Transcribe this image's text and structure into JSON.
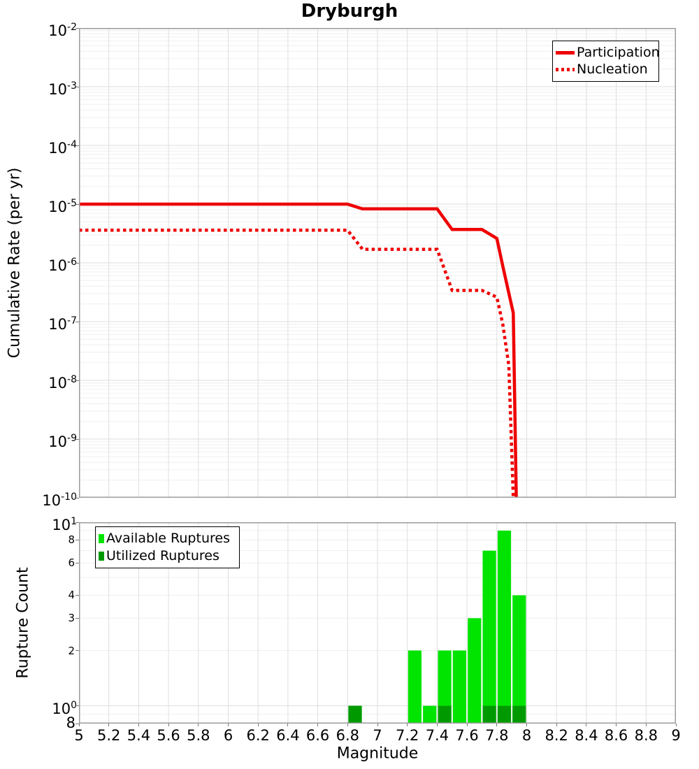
{
  "title": "Dryburgh",
  "colors": {
    "series_red": "#ee0000",
    "available_green": "#00e400",
    "utilized_green": "#009a00",
    "grid_major": "#dedede",
    "grid_minor": "#efefef",
    "panel_border": "#9c9c9c",
    "legend_border": "#000000",
    "background": "#ffffff",
    "text": "#000000"
  },
  "x_axis": {
    "label": "Magnitude",
    "min": 5,
    "max": 9,
    "ticks": [
      {
        "v": 5,
        "label": "5"
      },
      {
        "v": 5.2,
        "label": "5.2"
      },
      {
        "v": 5.4,
        "label": "5.4"
      },
      {
        "v": 5.6,
        "label": "5.6"
      },
      {
        "v": 5.8,
        "label": "5.8"
      },
      {
        "v": 6,
        "label": "6"
      },
      {
        "v": 6.2,
        "label": "6.2"
      },
      {
        "v": 6.4,
        "label": "6.4"
      },
      {
        "v": 6.6,
        "label": "6.6"
      },
      {
        "v": 6.8,
        "label": "6.8"
      },
      {
        "v": 7,
        "label": "7"
      },
      {
        "v": 7.2,
        "label": "7.2"
      },
      {
        "v": 7.4,
        "label": "7.4"
      },
      {
        "v": 7.6,
        "label": "7.6"
      },
      {
        "v": 7.8,
        "label": "7.8"
      },
      {
        "v": 8,
        "label": "8"
      },
      {
        "v": 8.2,
        "label": "8.2"
      },
      {
        "v": 8.4,
        "label": "8.4"
      },
      {
        "v": 8.6,
        "label": "8.6"
      },
      {
        "v": 8.8,
        "label": "8.8"
      },
      {
        "v": 9,
        "label": "9"
      }
    ]
  },
  "chart_data": [
    {
      "type": "line",
      "title": "Dryburgh",
      "xlabel": "Magnitude",
      "ylabel": "Cumulative Rate (per yr)",
      "y_scale": "log",
      "xlim": [
        5,
        9
      ],
      "ylim": [
        1e-10,
        0.01
      ],
      "grid": true,
      "legend_position": "top-right",
      "y_tick_exponents": [
        -2,
        -3,
        -4,
        -5,
        -6,
        -7,
        -8,
        -9,
        -10
      ],
      "series": [
        {
          "name": "Participation",
          "line_style": "solid",
          "color_key": "series_red",
          "points": [
            [
              5.0,
              1e-05
            ],
            [
              6.8,
              1e-05
            ],
            [
              6.9,
              8.3e-06
            ],
            [
              7.4,
              8.3e-06
            ],
            [
              7.5,
              3.7e-06
            ],
            [
              7.7,
              3.7e-06
            ],
            [
              7.8,
              2.6e-06
            ],
            [
              7.84,
              8.8e-07
            ],
            [
              7.91,
              1.4e-07
            ],
            [
              7.93,
              1e-10
            ]
          ]
        },
        {
          "name": "Nucleation",
          "line_style": "dotted",
          "color_key": "series_red",
          "points": [
            [
              5.0,
              3.6e-06
            ],
            [
              6.8,
              3.6e-06
            ],
            [
              6.9,
              1.7e-06
            ],
            [
              7.4,
              1.7e-06
            ],
            [
              7.5,
              3.4e-07
            ],
            [
              7.7,
              3.4e-07
            ],
            [
              7.8,
              2.6e-07
            ],
            [
              7.84,
              9e-08
            ],
            [
              7.88,
              1.8e-08
            ],
            [
              7.91,
              1e-10
            ]
          ]
        }
      ]
    },
    {
      "type": "bar",
      "xlabel": "Magnitude",
      "ylabel": "Rupture Count",
      "y_scale": "log",
      "xlim": [
        5,
        9
      ],
      "ylim": [
        0.8,
        10
      ],
      "grid": true,
      "legend_position": "top-left",
      "bin_width": 0.1,
      "bar_draw_width": 0.09,
      "y_ticks_major": [
        {
          "v": 10,
          "exponent": 1
        },
        {
          "v": 1,
          "exponent": 0
        }
      ],
      "y_ticks_minor_labeled": [
        {
          "v": 8,
          "label": "8"
        },
        {
          "v": 6,
          "label": "6"
        },
        {
          "v": 4,
          "label": "4"
        },
        {
          "v": 3,
          "label": "3"
        },
        {
          "v": 2,
          "label": "2"
        }
      ],
      "y_tick_below_one": {
        "v": 0.8,
        "label": "8"
      },
      "series": [
        {
          "name": "Available Ruptures",
          "color_key": "available_green",
          "bars": [
            {
              "mag": 6.85,
              "count": 1
            },
            {
              "mag": 7.25,
              "count": 2
            },
            {
              "mag": 7.35,
              "count": 1
            },
            {
              "mag": 7.45,
              "count": 2
            },
            {
              "mag": 7.55,
              "count": 2
            },
            {
              "mag": 7.65,
              "count": 3
            },
            {
              "mag": 7.75,
              "count": 7
            },
            {
              "mag": 7.85,
              "count": 9
            },
            {
              "mag": 7.95,
              "count": 4
            }
          ]
        },
        {
          "name": "Utilized Ruptures",
          "color_key": "utilized_green",
          "bars": [
            {
              "mag": 6.85,
              "count": 1
            },
            {
              "mag": 7.45,
              "count": 1
            },
            {
              "mag": 7.75,
              "count": 1
            },
            {
              "mag": 7.85,
              "count": 1
            },
            {
              "mag": 7.95,
              "count": 1
            }
          ]
        }
      ]
    }
  ]
}
